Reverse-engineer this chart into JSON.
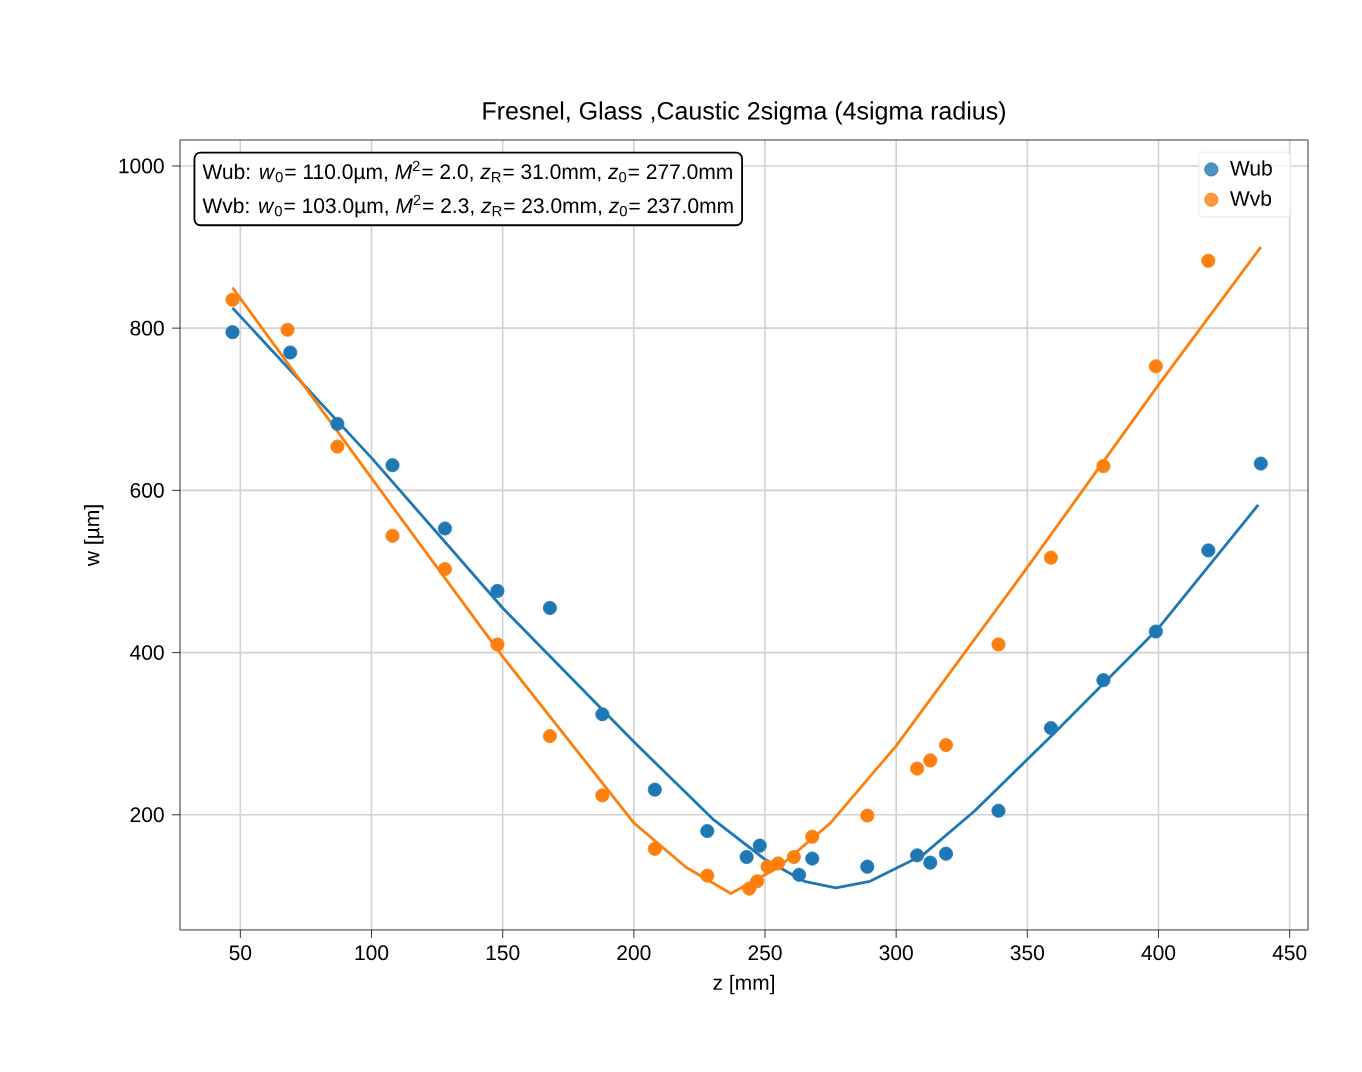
{
  "chart_data": {
    "type": "scatter",
    "title": "Fresnel, Glass ,Caustic 2sigma (4sigma radius)",
    "xlabel": "z [mm]",
    "ylabel": "w [µm]",
    "annotations": [
      "Wub: *w*$_{0}$= 110.0µm, *M*$^{2}$= 2.0, *z*$_{R}$= 31.0mm, *z*$_{0}$= 277.0mm",
      "Wvb: *w*$_{0}$= 103.0µm, *M*$^{2}$= 2.3, *z*$_{R}$= 23.0mm, *z*$_{0}$= 237.0mm"
    ],
    "xlim": [
      27,
      457
    ],
    "ylim": [
      58,
      1032
    ],
    "xticks": [
      50,
      100,
      150,
      200,
      250,
      300,
      350,
      400,
      450
    ],
    "yticks": [
      200,
      400,
      600,
      800,
      1000
    ],
    "grid": true,
    "legend": "top right",
    "marker": "circle",
    "series": [
      {
        "name": "Wub",
        "color": "#1f77b4",
        "x": [
          47,
          69,
          87,
          108,
          128,
          148,
          168,
          188,
          208,
          228,
          243,
          248,
          255,
          263,
          268,
          289,
          308,
          313,
          319,
          339,
          359,
          379,
          399,
          419,
          439
        ],
        "values": [
          795,
          770,
          682,
          631,
          553,
          476,
          455,
          324,
          231,
          180,
          148,
          162,
          null,
          126,
          146,
          136,
          150,
          141,
          152,
          205,
          307,
          366,
          426,
          526,
          633
        ]
      },
      {
        "name": "Wvb",
        "color": "#ff7f0e",
        "x": [
          47,
          68,
          87,
          108,
          128,
          148,
          168,
          188,
          208,
          228,
          244,
          247,
          251,
          255,
          261,
          268,
          289,
          308,
          313,
          319,
          339,
          359,
          379,
          399,
          419
        ],
        "values": [
          835,
          798,
          654,
          544,
          503,
          410,
          297,
          224,
          158,
          125,
          109,
          118,
          136,
          140,
          148,
          173,
          199,
          257,
          267,
          286,
          410,
          517,
          630,
          753,
          883
        ]
      },
      {
        "color": "#1f77b4",
        "type": "line",
        "marker": "none",
        "x": [
          47,
          100,
          150,
          200,
          230,
          250,
          265,
          277,
          290,
          310,
          330,
          360,
          400,
          438
        ],
        "values": [
          825,
          640,
          455,
          290,
          195,
          145,
          118,
          110,
          118,
          150,
          205,
          300,
          430,
          582
        ]
      },
      {
        "color": "#ff7f0e",
        "type": "line",
        "marker": "none",
        "x": [
          47,
          100,
          150,
          200,
          220,
          237,
          255,
          275,
          300,
          350,
          400,
          439
        ],
        "values": [
          850,
          615,
          395,
          190,
          135,
          103,
          135,
          190,
          285,
          505,
          730,
          900
        ]
      }
    ]
  }
}
